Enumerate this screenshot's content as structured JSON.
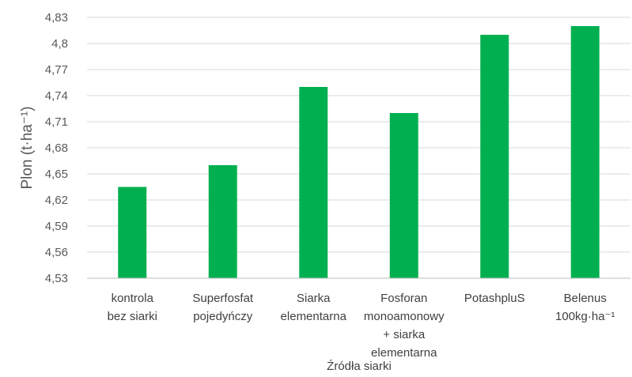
{
  "chart_data": {
    "type": "bar",
    "categories": [
      [
        "kontrola",
        "bez siarki"
      ],
      [
        "Superfosfat",
        "pojedyńczy"
      ],
      [
        "Siarka",
        "elementarna"
      ],
      [
        "Fosforan",
        "monoamonowy",
        "+ siarka",
        "elementarna"
      ],
      [
        "PotashpluS"
      ],
      [
        "Belenus",
        "100kg·ha⁻¹"
      ]
    ],
    "values": [
      4.635,
      4.66,
      4.75,
      4.72,
      4.81,
      4.82
    ],
    "ylim": [
      4.53,
      4.83
    ],
    "yticks": [
      "4,53",
      "4,56",
      "4,59",
      "4,62",
      "4,65",
      "4,68",
      "4,71",
      "4,74",
      "4,77",
      "4,8",
      "4,83"
    ],
    "ytick_values": [
      4.53,
      4.56,
      4.59,
      4.62,
      4.65,
      4.68,
      4.71,
      4.74,
      4.77,
      4.8,
      4.83
    ],
    "ylabel": "Plon (t·ha⁻¹)",
    "xlabel": "Źródła siarki",
    "grid": true,
    "bar_color": "#00b050"
  }
}
